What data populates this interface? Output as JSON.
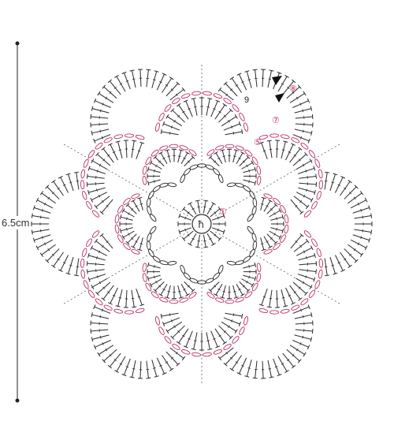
{
  "size_label": "6.5cm",
  "row_labels": [
    {
      "id": "r1",
      "text": "①"
    },
    {
      "id": "r5",
      "text": "⑤"
    },
    {
      "id": "r7",
      "text": "⑦"
    },
    {
      "id": "r8",
      "text": "⑧"
    },
    {
      "id": "r9",
      "text": "9"
    }
  ],
  "colors": {
    "ink": "#2a2a2a",
    "accent": "#c0306a",
    "arrow": "#111111"
  },
  "corner_fragment": "- - -"
}
